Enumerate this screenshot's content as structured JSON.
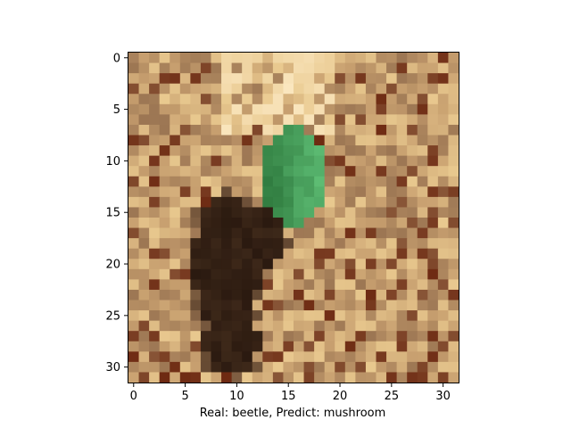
{
  "figure": {
    "xlabel": "Real: beetle, Predict: mushroom",
    "x_ticks": [
      "0",
      "5",
      "10",
      "15",
      "20",
      "25",
      "30"
    ],
    "y_ticks": [
      "0",
      "5",
      "10",
      "15",
      "20",
      "25",
      "30"
    ],
    "x_range": [
      -0.5,
      31.5
    ],
    "y_range": [
      31.5,
      -0.5
    ],
    "y_axis_inverted": true,
    "image_grid": [
      32,
      32
    ],
    "image_content": "pixelated 32x32 photo of a beetle on sandy brown ground: green elytra at top center, dark brown body below",
    "colors": {
      "sand_light": "#e9c98f",
      "sand_mid": "#c79f6f",
      "sand_dark": "#9c7653",
      "beetle_green": "#5fbf76",
      "beetle_dark_green": "#2f7a3e",
      "beetle_body": "#2b1a10",
      "accent_red_brown": "#6e2a12"
    }
  }
}
